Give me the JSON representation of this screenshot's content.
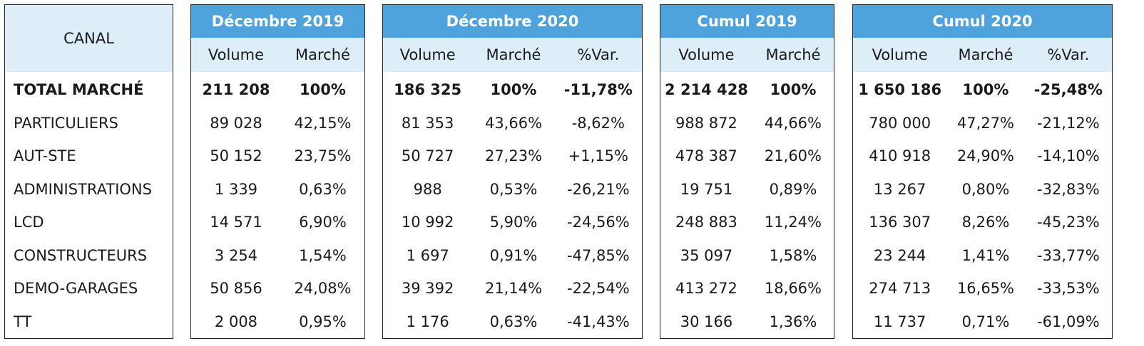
{
  "canal": {
    "header": "CANAL",
    "labels": [
      "TOTAL MARCHÉ",
      "PARTICULIERS",
      "AUT-STE",
      "ADMINISTRATIONS",
      "LCD",
      "CONSTRUCTEURS",
      "DEMO-GARAGES",
      "TT"
    ]
  },
  "groups": [
    {
      "title": "Décembre 2019",
      "columns": [
        "Volume",
        "Marché"
      ],
      "rows": [
        [
          "211 208",
          "100%"
        ],
        [
          "89 028",
          "42,15%"
        ],
        [
          "50 152",
          "23,75%"
        ],
        [
          "1 339",
          "0,63%"
        ],
        [
          "14 571",
          "6,90%"
        ],
        [
          "3 254",
          "1,54%"
        ],
        [
          "50 856",
          "24,08%"
        ],
        [
          "2 008",
          "0,95%"
        ]
      ]
    },
    {
      "title": "Décembre 2020",
      "columns": [
        "Volume",
        "Marché",
        "%Var."
      ],
      "rows": [
        [
          "186 325",
          "100%",
          "-11,78%"
        ],
        [
          "81 353",
          "43,66%",
          "-8,62%"
        ],
        [
          "50 727",
          "27,23%",
          "+1,15%"
        ],
        [
          "988",
          "0,53%",
          "-26,21%"
        ],
        [
          "10 992",
          "5,90%",
          "-24,56%"
        ],
        [
          "1 697",
          "0,91%",
          "-47,85%"
        ],
        [
          "39 392",
          "21,14%",
          "-22,54%"
        ],
        [
          "1 176",
          "0,63%",
          "-41,43%"
        ]
      ]
    },
    {
      "title": "Cumul 2019",
      "columns": [
        "Volume",
        "Marché"
      ],
      "rows": [
        [
          "2 214 428",
          "100%"
        ],
        [
          "988 872",
          "44,66%"
        ],
        [
          "478 387",
          "21,60%"
        ],
        [
          "19 751",
          "0,89%"
        ],
        [
          "248 883",
          "11,24%"
        ],
        [
          "35 097",
          "1,58%"
        ],
        [
          "413 272",
          "18,66%"
        ],
        [
          "30 166",
          "1,36%"
        ]
      ]
    },
    {
      "title": "Cumul 2020",
      "columns": [
        "Volume",
        "Marché",
        "%Var."
      ],
      "rows": [
        [
          "1 650 186",
          "100%",
          "-25,48%"
        ],
        [
          "780 000",
          "47,27%",
          "-21,12%"
        ],
        [
          "410 918",
          "24,90%",
          "-14,10%"
        ],
        [
          "13 267",
          "0,80%",
          "-32,83%"
        ],
        [
          "136 307",
          "8,26%",
          "-45,23%"
        ],
        [
          "23 244",
          "1,41%",
          "-33,77%"
        ],
        [
          "274 713",
          "16,65%",
          "-33,53%"
        ],
        [
          "11 737",
          "0,71%",
          "-61,09%"
        ]
      ]
    }
  ],
  "colors": {
    "header_blue": "#4fa3dd",
    "subheader_light": "#ddeef8",
    "border": "#222222"
  }
}
